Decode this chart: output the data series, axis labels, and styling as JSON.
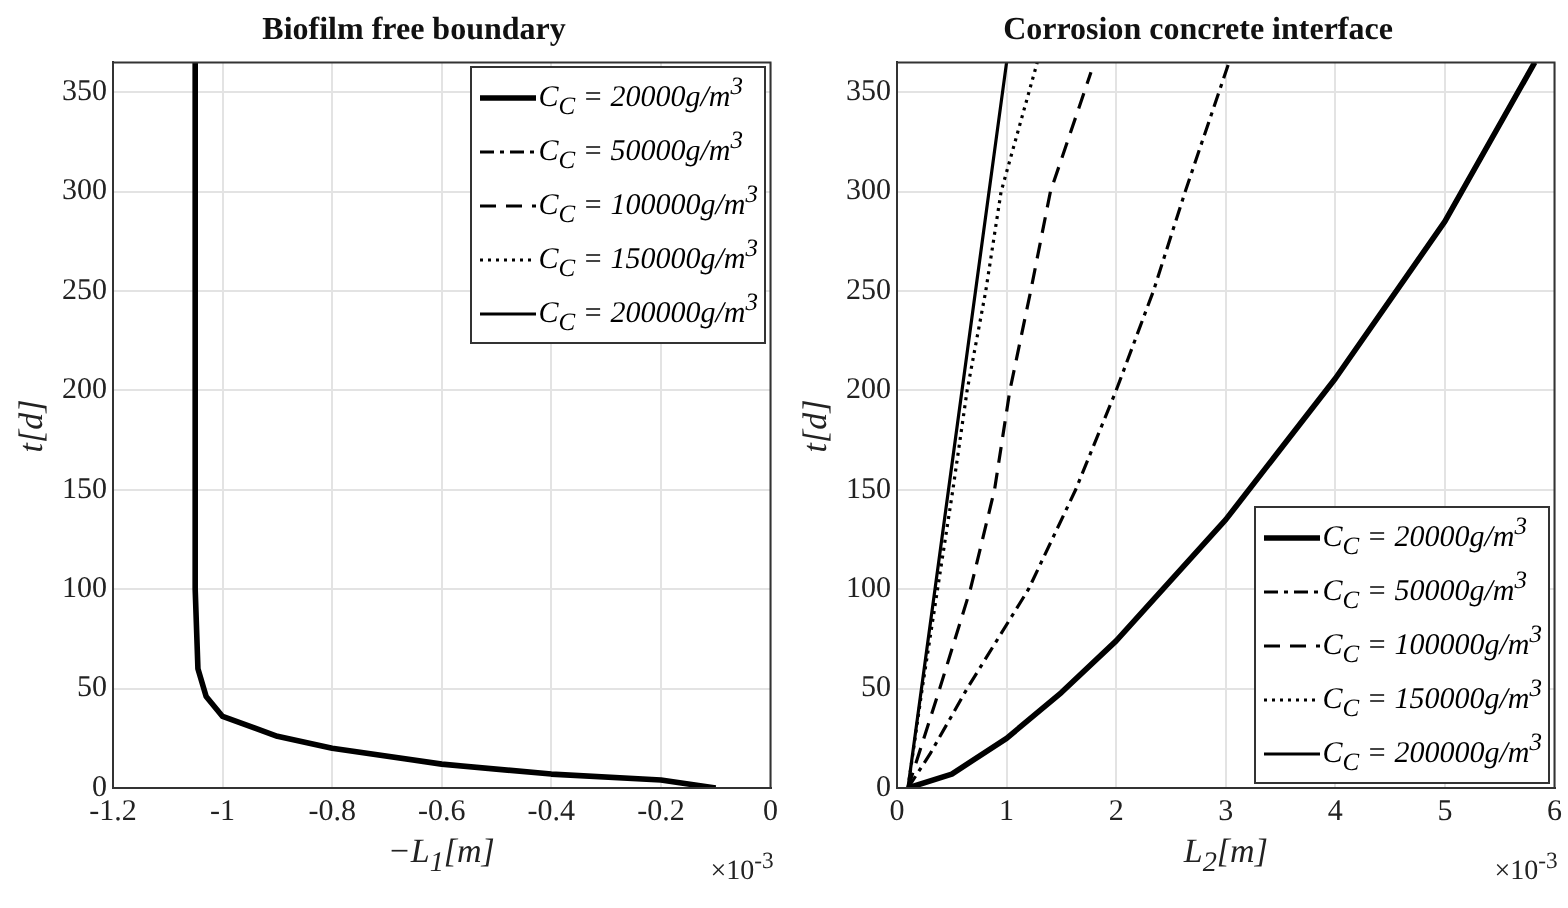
{
  "chart_data": [
    {
      "type": "line",
      "title": "Biofilm free boundary",
      "xlabel": "−L$_{1}$[m]",
      "ylabel": "t[d]",
      "xlim": [
        -1.2,
        0
      ],
      "xticks": [
        -1.2,
        -1,
        -0.8,
        -0.6,
        -0.4,
        -0.2,
        0
      ],
      "ylim": [
        0,
        365
      ],
      "yticks": [
        0,
        50,
        100,
        150,
        200,
        250,
        300,
        350
      ],
      "grid": true,
      "legend": "top right",
      "annotations": [
        "×10$^{-3}$"
      ],
      "series": [
        {
          "name": "C$_{C}$ = 20000g/m$^{3}$",
          "color": "#000000",
          "line_style": "solid",
          "x": [
            -0.1,
            -0.2,
            -0.4,
            -0.6,
            -0.8,
            -0.9,
            -1.0,
            -1.03,
            -1.045,
            -1.05,
            -1.05
          ],
          "values": [
            0,
            4,
            7,
            12,
            20,
            26,
            36,
            46,
            60,
            100,
            365
          ]
        },
        {
          "name": "C$_{C}$ = 50000g/m$^{3}$",
          "color": "#000000",
          "line_style": "dashdot"
        },
        {
          "name": "C$_{C}$ = 100000g/m$^{3}$",
          "color": "#000000",
          "line_style": "dashed"
        },
        {
          "name": "C$_{C}$ = 150000g/m$^{3}$",
          "color": "#000000",
          "line_style": "dotted"
        },
        {
          "name": "C$_{C}$ = 200000g/m$^{3}$",
          "color": "#000000",
          "line_style": "solid"
        }
      ]
    },
    {
      "type": "line",
      "title": "Corrosion concrete interface",
      "xlabel": "L$_{2}$[m]",
      "ylabel": "t[d]",
      "xlim": [
        0,
        6
      ],
      "xticks": [
        0,
        1,
        2,
        3,
        4,
        5,
        6
      ],
      "ylim": [
        0,
        365
      ],
      "yticks": [
        0,
        50,
        100,
        150,
        200,
        250,
        300,
        350
      ],
      "grid": true,
      "legend": "bottom right",
      "annotations": [
        "×10$^{-3}$"
      ],
      "series": [
        {
          "name": "C$_{C}$ = 20000g/m$^{3}$",
          "color": "#000000",
          "line_style": "solid",
          "x": [
            0.1,
            0.5,
            1,
            1.5,
            2,
            3,
            4,
            5,
            5.82
          ],
          "values": [
            0,
            7,
            25,
            48,
            74,
            135,
            206,
            285,
            365
          ]
        },
        {
          "name": "C$_{C}$ = 50000g/m$^{3}$",
          "color": "#000000",
          "line_style": "dashdot",
          "x": [
            0.1,
            0.3,
            0.64,
            1.2,
            1.63,
            2,
            2.34,
            2.63,
            3.03
          ],
          "values": [
            0,
            17,
            50,
            100,
            150,
            200,
            250,
            300,
            365
          ]
        },
        {
          "name": "C$_{C}$ = 100000g/m$^{3}$",
          "color": "#000000",
          "line_style": "dashed",
          "x": [
            0.1,
            0.39,
            0.67,
            0.89,
            1.03,
            1.22,
            1.4,
            1.77
          ],
          "values": [
            0,
            50,
            100,
            150,
            200,
            250,
            300,
            360
          ]
        },
        {
          "name": "C$_{C}$ = 150000g/m$^{3}$",
          "color": "#000000",
          "line_style": "dotted",
          "x": [
            0.1,
            0.23,
            0.37,
            0.51,
            0.64,
            0.81,
            0.95,
            1.28
          ],
          "values": [
            0,
            50,
            100,
            150,
            200,
            250,
            300,
            365
          ]
        },
        {
          "name": "C$_{C}$ = 200000g/m$^{3}$",
          "color": "#000000",
          "line_style": "solid",
          "x": [
            0.1,
            0.47,
            1.0
          ],
          "values": [
            0,
            150,
            365
          ]
        }
      ]
    }
  ]
}
